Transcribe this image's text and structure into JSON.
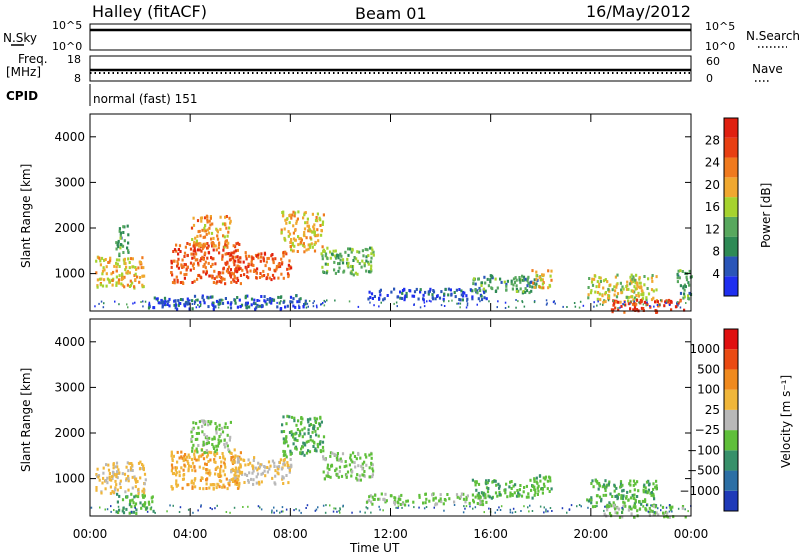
{
  "header": {
    "station": "Halley (fitACF)",
    "beam": "Beam 01",
    "date": "16/May/2012"
  },
  "strips": {
    "nsky_label": "N.Sky",
    "nsky_ticks": [
      "10^5",
      "10^0"
    ],
    "nsearch_label": "N.Search",
    "nsearch_ticks": [
      "10^5",
      "10^0"
    ],
    "freq_label_top": "Freq.",
    "freq_label_unit": "[MHz]",
    "freq_ticks": [
      "18",
      "8"
    ],
    "nave_label": "Nave",
    "nave_ticks": [
      "60",
      "0"
    ],
    "cpid_label": "CPID",
    "cpid_value": "normal (fast) 151"
  },
  "power_panel": {
    "ylabel": "Slant Range [km]",
    "yticks": [
      "4000",
      "3000",
      "2000",
      "1000"
    ],
    "colorbar_label": "Power [dB]",
    "colorbar_ticks": [
      "28",
      "24",
      "20",
      "16",
      "12",
      "8",
      "4"
    ]
  },
  "velocity_panel": {
    "ylabel": "Slant Range [km]",
    "yticks": [
      "4000",
      "3000",
      "2000",
      "1000"
    ],
    "colorbar_label": "Velocity [m s⁻¹]",
    "colorbar_ticks": [
      "1000",
      "500",
      "100",
      "25",
      "−25",
      "−100",
      "−500",
      "−1000"
    ]
  },
  "xaxis": {
    "label": "Time UT",
    "ticks": [
      "00:00",
      "04:00",
      "08:00",
      "12:00",
      "16:00",
      "20:00",
      "00:00"
    ]
  },
  "colors": {
    "power_scale": [
      "#1f2ff0",
      "#2a55b8",
      "#2e8a55",
      "#58a85e",
      "#a6d32f",
      "#f0a830",
      "#f07a1e",
      "#e83f12",
      "#e02010"
    ],
    "velocity_scale": [
      "#1f3ab8",
      "#2c6fa5",
      "#37906a",
      "#5fbf3a",
      "#b8b8b8",
      "#f0b63a",
      "#f08a1e",
      "#ea4a12",
      "#e01010"
    ]
  },
  "chart_data": [
    {
      "type": "line",
      "title": "N.Sky / N.Search",
      "x": [
        0,
        24
      ],
      "series": [
        {
          "name": "N.Sky",
          "values": [
            50000,
            50000
          ]
        }
      ],
      "xlim": [
        0,
        24
      ]
    },
    {
      "type": "line",
      "title": "Freq. / Nave",
      "x": [
        0,
        24
      ],
      "series": [
        {
          "name": "Freq.",
          "values": [
            12,
            12
          ]
        }
      ],
      "xlim": [
        0,
        24
      ],
      "ylim": [
        8,
        18
      ]
    },
    {
      "type": "heatmap",
      "title": "Power [dB]",
      "xlabel": "Time UT",
      "ylabel": "Slant Range [km]",
      "xlim": [
        0,
        24
      ],
      "ylim": [
        180,
        4500
      ],
      "zlim": [
        0,
        30
      ],
      "regions": [
        {
          "t0": 0.2,
          "t1": 2.2,
          "r0": 700,
          "r1": 1400,
          "value": 18
        },
        {
          "t0": 1.0,
          "t1": 1.5,
          "r0": 1400,
          "r1": 2100,
          "value": 10
        },
        {
          "t0": 3.2,
          "t1": 6.0,
          "r0": 800,
          "r1": 1700,
          "value": 24
        },
        {
          "t0": 4.0,
          "t1": 5.6,
          "r0": 1600,
          "r1": 2300,
          "value": 20
        },
        {
          "t0": 5.5,
          "t1": 8.0,
          "r0": 900,
          "r1": 1500,
          "value": 24
        },
        {
          "t0": 7.6,
          "t1": 9.3,
          "r0": 1500,
          "r1": 2400,
          "value": 18
        },
        {
          "t0": 9.2,
          "t1": 11.3,
          "r0": 1000,
          "r1": 1600,
          "value": 12
        },
        {
          "t0": 2.2,
          "t1": 8.6,
          "r0": 250,
          "r1": 550,
          "value": 4
        },
        {
          "t0": 11.0,
          "t1": 15.8,
          "r0": 450,
          "r1": 700,
          "value": 4
        },
        {
          "t0": 15.2,
          "t1": 18.0,
          "r0": 600,
          "r1": 1000,
          "value": 10
        },
        {
          "t0": 17.6,
          "t1": 18.4,
          "r0": 700,
          "r1": 1100,
          "value": 18
        },
        {
          "t0": 19.8,
          "t1": 22.6,
          "r0": 400,
          "r1": 1000,
          "value": 16
        },
        {
          "t0": 20.5,
          "t1": 23.8,
          "r0": 180,
          "r1": 450,
          "value": 26
        },
        {
          "t0": 23.4,
          "t1": 24.0,
          "r0": 450,
          "r1": 1100,
          "value": 10
        }
      ]
    },
    {
      "type": "heatmap",
      "title": "Velocity [m s⁻¹]",
      "xlabel": "Time UT",
      "ylabel": "Slant Range [km]",
      "xlim": [
        0,
        24
      ],
      "ylim": [
        180,
        4500
      ],
      "zlim": [
        -1000,
        1000
      ],
      "regions": [
        {
          "t0": 0.2,
          "t1": 2.2,
          "r0": 700,
          "r1": 1400,
          "value": 150
        },
        {
          "t0": 1.0,
          "t1": 2.5,
          "r0": 250,
          "r1": 700,
          "value": -300
        },
        {
          "t0": 3.2,
          "t1": 6.0,
          "r0": 800,
          "r1": 1700,
          "value": 300
        },
        {
          "t0": 4.0,
          "t1": 5.6,
          "r0": 1600,
          "r1": 2300,
          "value": -150
        },
        {
          "t0": 5.5,
          "t1": 8.0,
          "r0": 900,
          "r1": 1500,
          "value": 100
        },
        {
          "t0": 7.6,
          "t1": 9.3,
          "r0": 1500,
          "r1": 2400,
          "value": -300
        },
        {
          "t0": 9.2,
          "t1": 11.3,
          "r0": 1000,
          "r1": 1600,
          "value": -150
        },
        {
          "t0": 11.0,
          "t1": 15.8,
          "r0": 450,
          "r1": 700,
          "value": -150
        },
        {
          "t0": 15.2,
          "t1": 18.0,
          "r0": 600,
          "r1": 1000,
          "value": -300
        },
        {
          "t0": 17.6,
          "t1": 18.4,
          "r0": 700,
          "r1": 1100,
          "value": -300
        },
        {
          "t0": 19.8,
          "t1": 22.6,
          "r0": 400,
          "r1": 1000,
          "value": -300
        },
        {
          "t0": 20.5,
          "t1": 23.8,
          "r0": 180,
          "r1": 450,
          "value": -150
        }
      ]
    }
  ]
}
